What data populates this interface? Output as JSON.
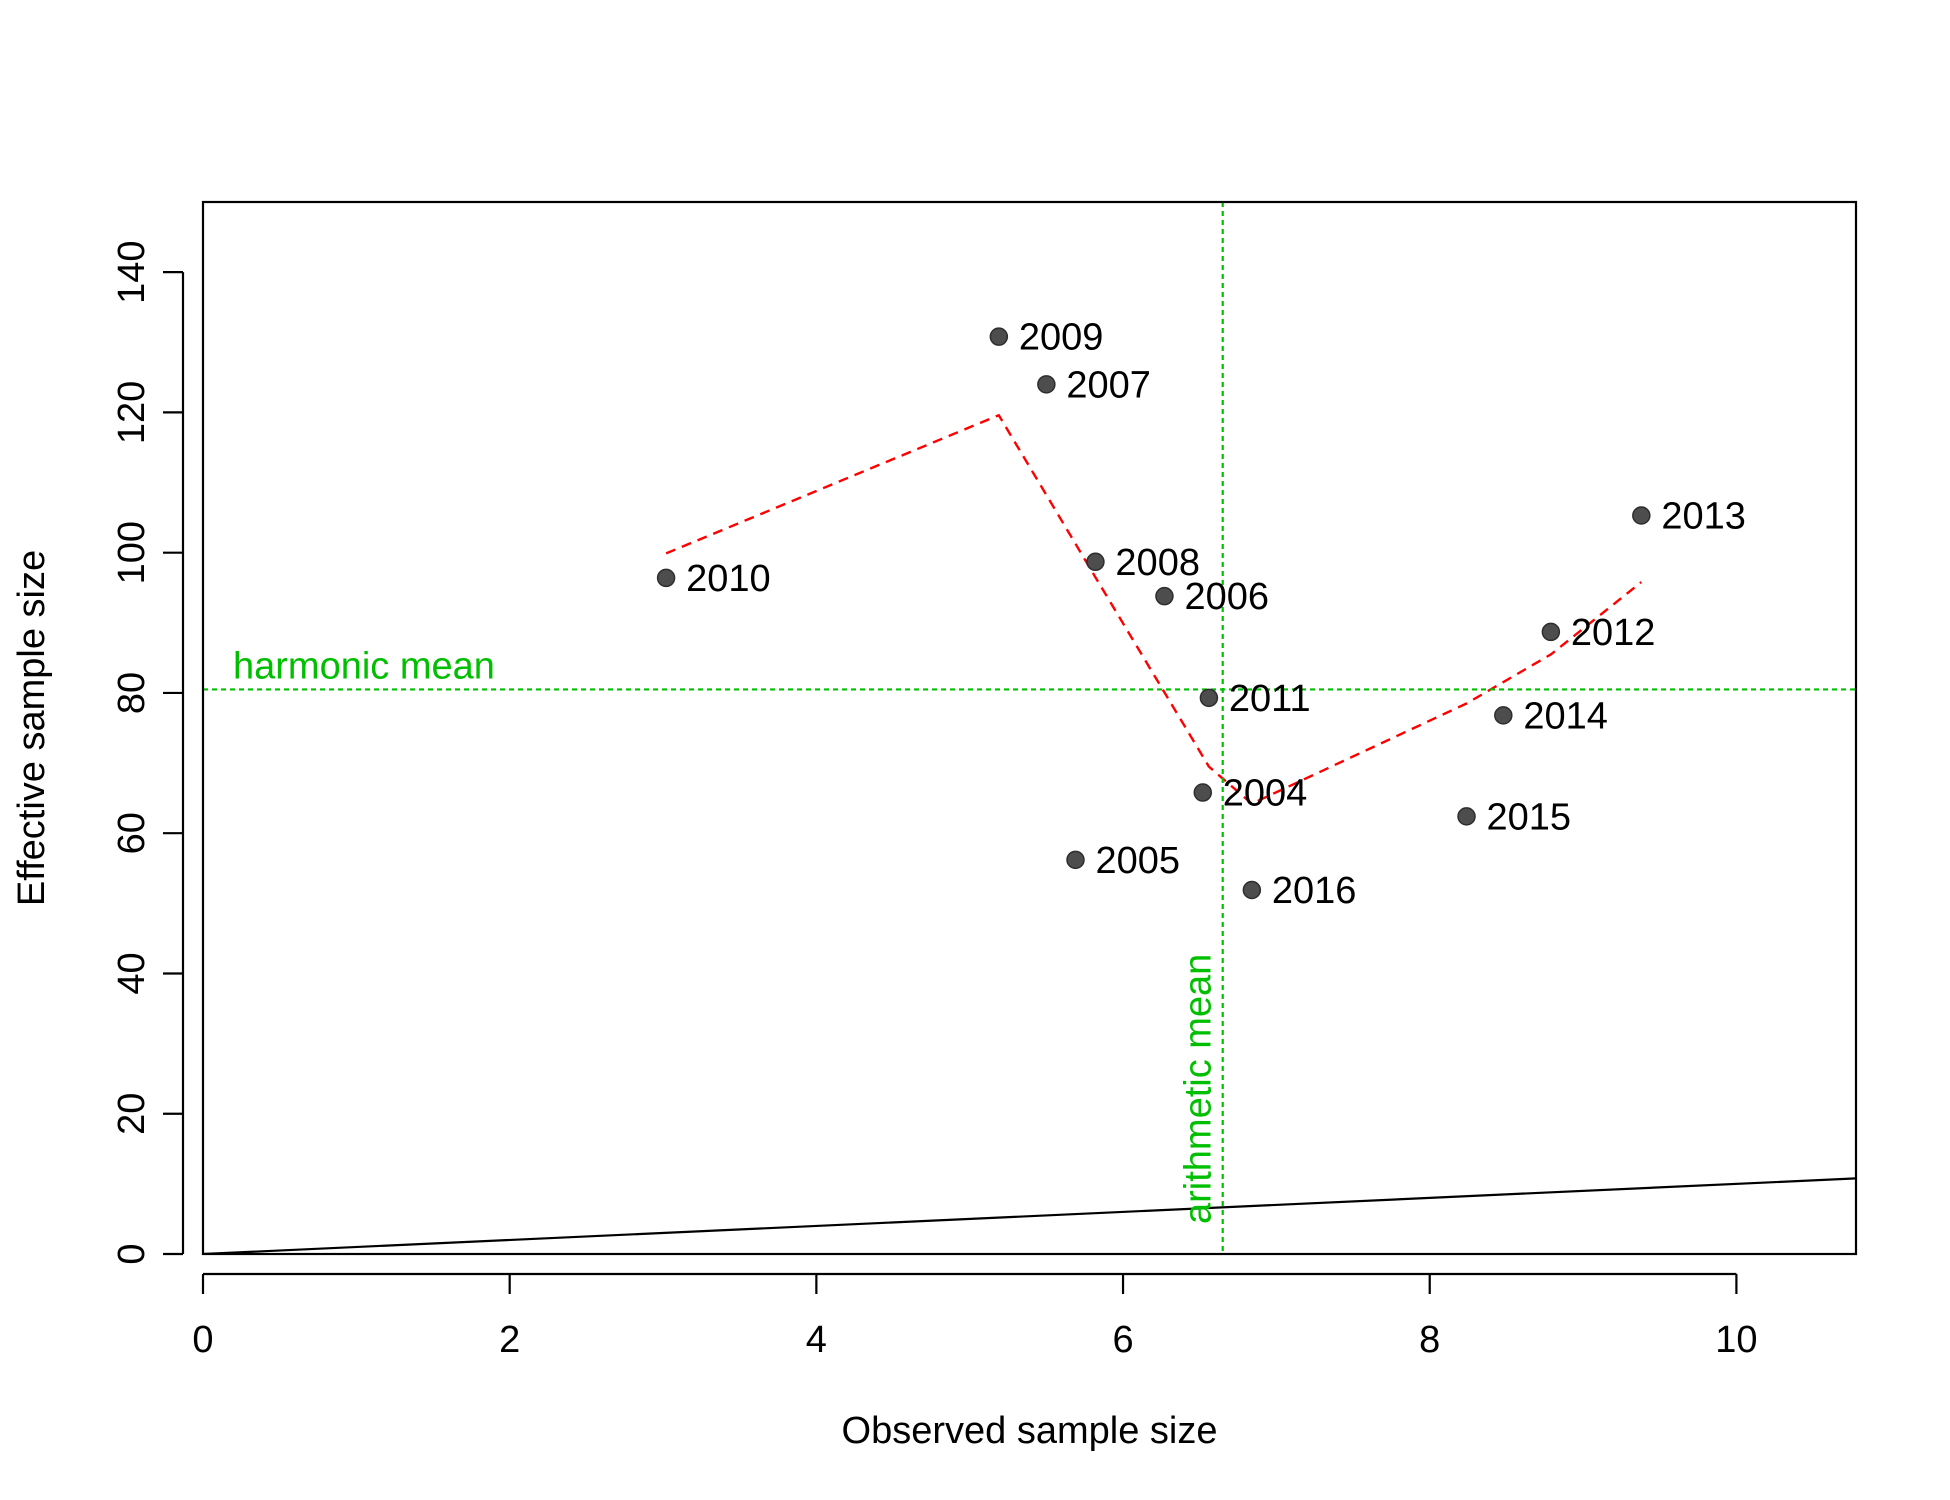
{
  "chart_data": {
    "type": "scatter",
    "xlabel": "Observed sample size",
    "ylabel": "Effective sample size",
    "xlim": [
      0,
      10.78
    ],
    "ylim": [
      0,
      150
    ],
    "x_ticks": [
      0,
      2,
      4,
      6,
      8,
      10
    ],
    "y_ticks": [
      0,
      20,
      40,
      60,
      80,
      100,
      120,
      140
    ],
    "grid": false,
    "points": [
      {
        "label": "2004",
        "x": 6.52,
        "y": 65.8
      },
      {
        "label": "2005",
        "x": 5.69,
        "y": 56.2
      },
      {
        "label": "2006",
        "x": 6.27,
        "y": 93.8
      },
      {
        "label": "2007",
        "x": 5.5,
        "y": 124.0
      },
      {
        "label": "2008",
        "x": 5.82,
        "y": 98.7
      },
      {
        "label": "2009",
        "x": 5.19,
        "y": 130.8
      },
      {
        "label": "2010",
        "x": 3.02,
        "y": 96.4
      },
      {
        "label": "2011",
        "x": 6.56,
        "y": 79.3
      },
      {
        "label": "2012",
        "x": 8.79,
        "y": 88.7
      },
      {
        "label": "2013",
        "x": 9.38,
        "y": 105.3
      },
      {
        "label": "2014",
        "x": 8.48,
        "y": 76.8
      },
      {
        "label": "2015",
        "x": 8.24,
        "y": 62.4
      },
      {
        "label": "2016",
        "x": 6.84,
        "y": 51.9
      }
    ],
    "smoother": [
      {
        "x": 3.02,
        "y": 99.9
      },
      {
        "x": 5.19,
        "y": 119.6
      },
      {
        "x": 5.82,
        "y": 96.5
      },
      {
        "x": 6.56,
        "y": 69.5
      },
      {
        "x": 6.84,
        "y": 64.2
      },
      {
        "x": 8.24,
        "y": 78.5
      },
      {
        "x": 8.79,
        "y": 85.5
      },
      {
        "x": 9.38,
        "y": 95.8
      }
    ],
    "identity_line": {
      "slope": 1
    },
    "reference_lines": {
      "harmonic_mean": {
        "label": "harmonic mean",
        "y": 80.5
      },
      "arithmetic_mean": {
        "label": "arithmetic mean",
        "x": 6.65
      }
    },
    "colors": {
      "points": "#4d4d4d",
      "smoother": "#ff0000",
      "reference": "#00bf00",
      "axes": "#000000"
    }
  }
}
